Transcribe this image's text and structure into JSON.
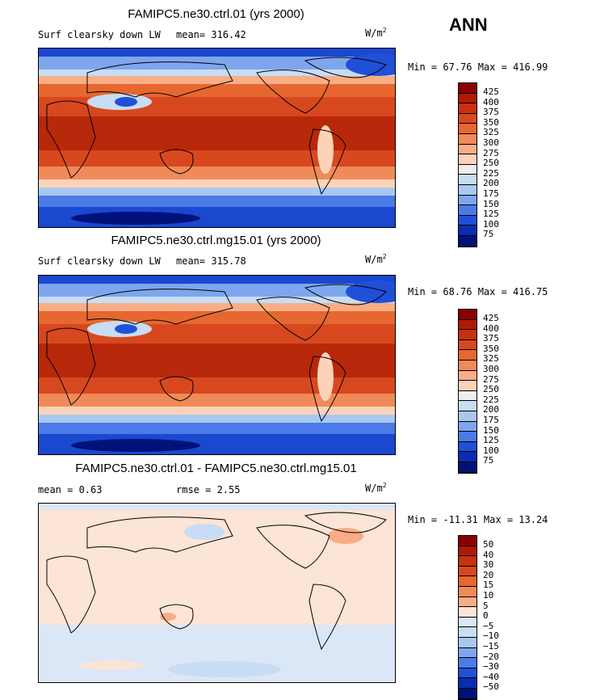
{
  "season": "ANN",
  "units_label": "W/m",
  "units_exp": "2",
  "panel1": {
    "title": "FAMIPC5.ne30.ctrl.01 (yrs 2000)",
    "variable": "Surf clearsky down LW",
    "mean_text": "mean= 316.42",
    "minmax_text": "Min =  67.76 Max = 416.99"
  },
  "panel2": {
    "title": "FAMIPC5.ne30.ctrl.mg15.01 (yrs 2000)",
    "variable": "Surf clearsky down LW",
    "mean_text": "mean= 315.78",
    "minmax_text": "Min =  68.76 Max = 416.75"
  },
  "panel3": {
    "title": "FAMIPC5.ne30.ctrl.01 - FAMIPC5.ne30.ctrl.mg15.01",
    "mean_text": "mean =   0.63",
    "rmse_text": "rmse =   2.55",
    "minmax_text": "Min = -11.31 Max =  13.24"
  },
  "colorbar_main": {
    "labels": [
      "425",
      "400",
      "375",
      "350",
      "325",
      "300",
      "275",
      "250",
      "225",
      "200",
      "175",
      "150",
      "125",
      "100",
      "75"
    ],
    "colors": [
      "#8b0000",
      "#b01a05",
      "#c8300f",
      "#d8481f",
      "#e6672f",
      "#f08a5a",
      "#f8ad86",
      "#fcd3b8",
      "#eeeeee",
      "#c8dcf4",
      "#a8c8f2",
      "#7ea6ee",
      "#4c7ae6",
      "#2050d8",
      "#0a2cb0",
      "#00127a"
    ]
  },
  "colorbar_diff": {
    "labels": [
      "50",
      "40",
      "30",
      "20",
      "15",
      "10",
      "5",
      "0",
      "−5",
      "−10",
      "−15",
      "−20",
      "−30",
      "−40",
      "−50"
    ],
    "colors": [
      "#8b0000",
      "#b01a05",
      "#c8300f",
      "#d8481f",
      "#e6672f",
      "#f08a5a",
      "#f8ad86",
      "#fce4d6",
      "#dbe7f6",
      "#c8dcf4",
      "#a8c8f2",
      "#7ea6ee",
      "#4c7ae6",
      "#2050d8",
      "#0a2cb0",
      "#00127a"
    ]
  }
}
